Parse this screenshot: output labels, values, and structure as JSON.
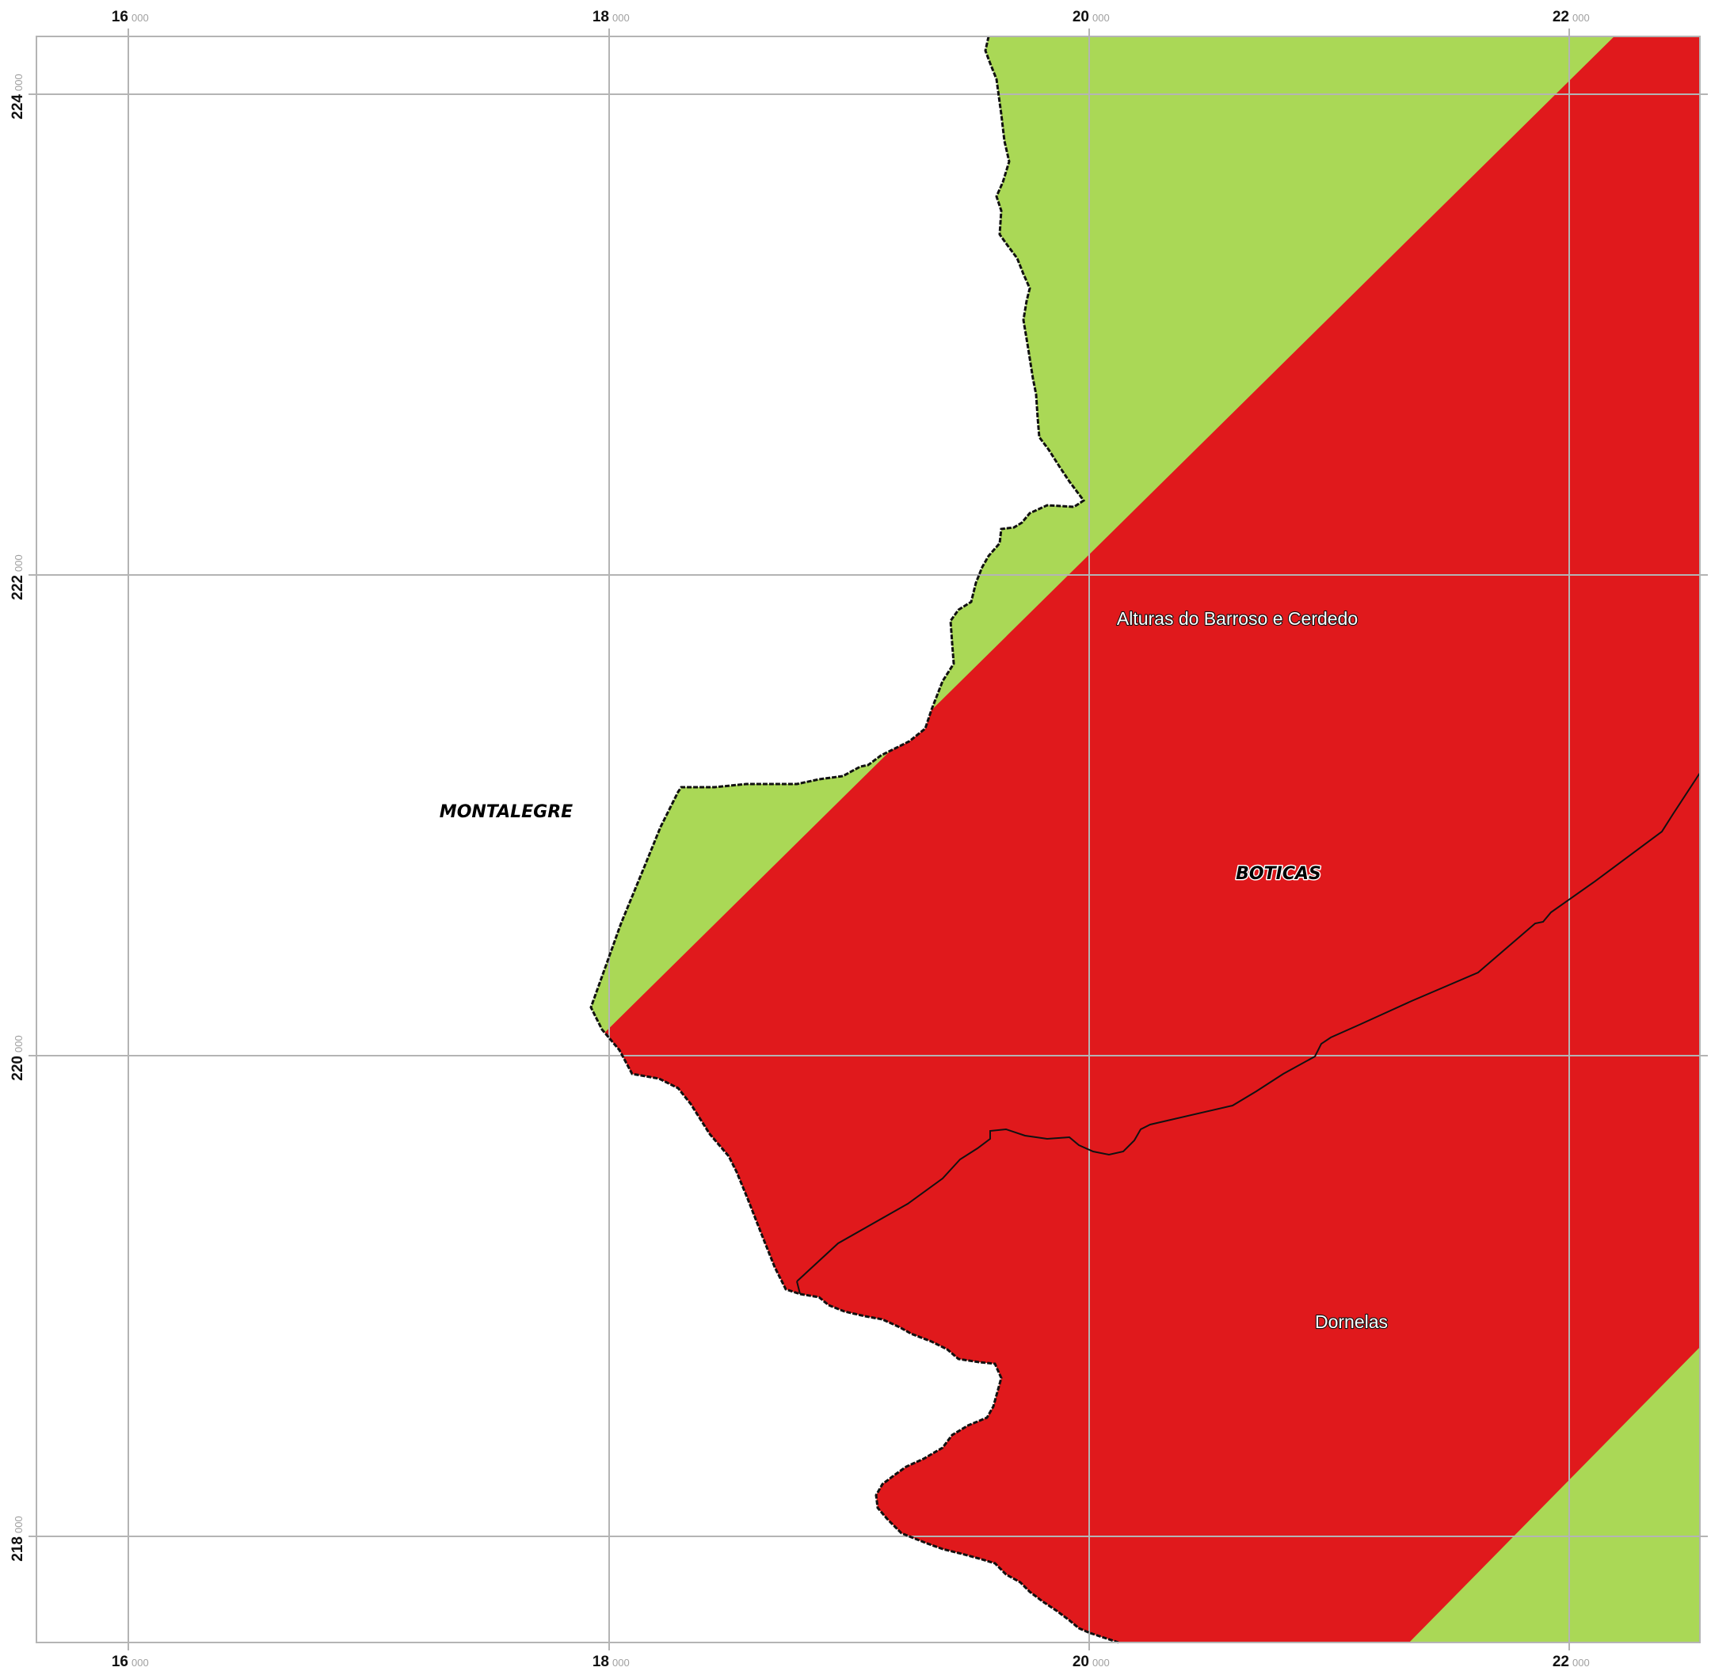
{
  "map": {
    "colors": {
      "background": "#ffffff",
      "zone_green": "#aad856",
      "zone_red": "#e0191c",
      "grid": "#b4b4b4",
      "boundary": "#111111"
    },
    "grid": {
      "x_major": [
        "16",
        "18",
        "20",
        "22"
      ],
      "y_major": [
        "224",
        "222",
        "220",
        "218"
      ],
      "minor_suffix": "000"
    },
    "labels": {
      "municipality_west": "MONTALEGRE",
      "municipality_main": "BOTICAS",
      "parish_north": "Alturas do Barroso e Cerdedo",
      "parish_south": "Dornelas"
    }
  }
}
